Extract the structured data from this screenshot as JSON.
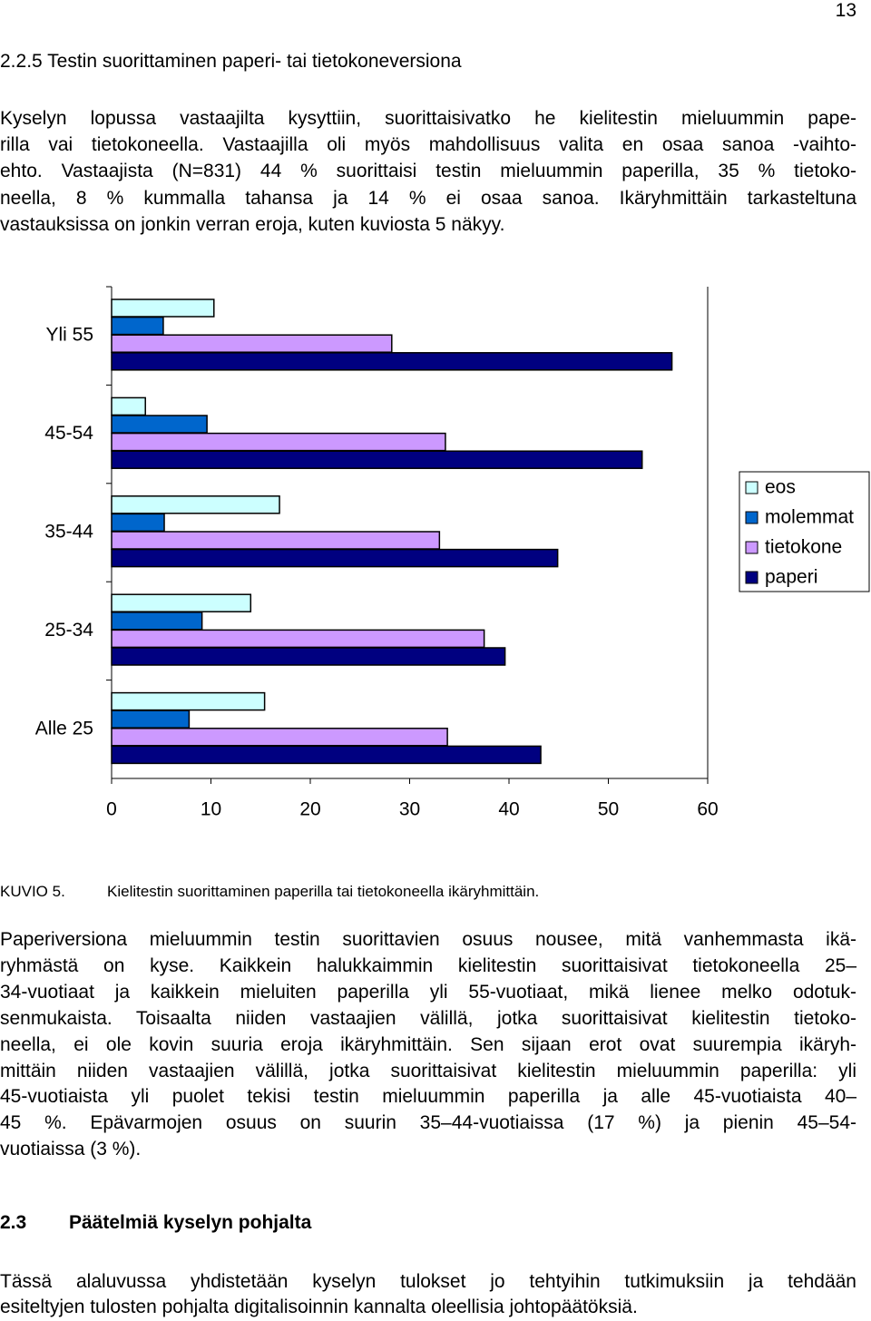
{
  "page_number": "13",
  "section_heading": "2.2.5 Testin suorittaminen paperi- tai tietokoneversiona",
  "paragraphs": [
    {
      "lines": [
        "Kyselyn lopussa vastaajilta kysyttiin, suorittaisivatko he kielitestin mieluummin pape-",
        "rilla vai tietokoneella. Vastaajilla oli myös mahdollisuus valita en osaa sanoa -vaihto-",
        "ehto. Vastaajista (N=831) 44 % suorittaisi testin mieluummin paperilla, 35 % tietoko-",
        "neella, 8 % kummalla tahansa ja 14 % ei osaa sanoa. Ikäryhmittäin tarkasteltuna",
        "vastauksissa on jonkin verran eroja, kuten kuviosta 5 näkyy."
      ]
    },
    {
      "lines": [
        "Paperiversiona mieluummin testin suorittavien osuus nousee, mitä vanhemmasta ikä-",
        "ryhmästä on kyse. Kaikkein halukkaimmin kielitestin suorittaisivat tietokoneella 25–",
        "34-vuotiaat ja kaikkein mieluiten paperilla yli 55-vuotiaat, mikä lienee melko odotuk-",
        "senmukaista. Toisaalta niiden vastaajien välillä, jotka suorittaisivat kielitestin tietoko-",
        "neella, ei ole kovin suuria eroja ikäryhmittäin. Sen sijaan erot ovat suurempia ikäryh-",
        "mittäin niiden vastaajien välillä, jotka suorittaisivat kielitestin mieluummin paperilla: yli",
        "45-vuotiaista yli puolet tekisi testin mieluummin paperilla ja alle 45-vuotiaista 40–",
        "45 %. Epävarmojen osuus on suurin 35–44-vuotiaissa (17 %) ja pienin 45–54-",
        "vuotiaissa (3 %)."
      ]
    },
    {
      "lines": [
        "Tässä alaluvussa yhdistetään kyselyn tulokset jo tehtyihin tutkimuksiin ja tehdään",
        "esiteltyjen tulosten pohjalta digitalisoinnin kannalta oleellisia johtopäätöksiä."
      ]
    }
  ],
  "caption": {
    "label": "KUVIO 5.",
    "text": "Kielitestin suorittaminen paperilla tai tietokoneella ikäryhmittäin."
  },
  "heading": {
    "number": "2.3",
    "title": "Päätelmiä kyselyn pohjalta"
  },
  "chart_data": {
    "type": "hbar",
    "categories": [
      "Yli 55",
      "45-54",
      "35-44",
      "25-34",
      "Alle 25"
    ],
    "series": [
      {
        "name": "eos",
        "color": "#ccffff",
        "values": [
          10.3,
          3.4,
          16.9,
          14.0,
          15.4
        ]
      },
      {
        "name": "molemmat",
        "color": "#0066cc",
        "values": [
          5.2,
          9.6,
          5.3,
          9.1,
          7.8
        ]
      },
      {
        "name": "tietokone",
        "color": "#cc99ff",
        "values": [
          28.2,
          33.6,
          33.0,
          37.5,
          33.8
        ]
      },
      {
        "name": "paperi",
        "color": "#000080",
        "values": [
          56.4,
          53.4,
          44.9,
          39.6,
          43.2
        ]
      }
    ],
    "xlim": [
      0,
      60
    ],
    "xticks": [
      0,
      10,
      20,
      30,
      40,
      50,
      60
    ],
    "legend": "right"
  }
}
